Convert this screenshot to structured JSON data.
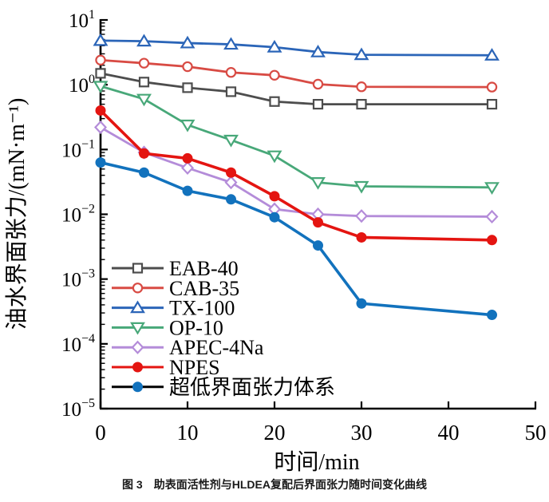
{
  "caption": {
    "number": "图 3",
    "text": "助表面活性剂与HLDEA复配后界面张力随时间变化曲线"
  },
  "chart_data": {
    "type": "line",
    "title": "",
    "xlabel": "时间/min",
    "ylabel": "油水界面张力/(mN·m⁻¹)",
    "grid": false,
    "legend_position": "inside-left-bottom",
    "x_axis": {
      "min": 0,
      "max": 50,
      "ticks": [
        0,
        10,
        20,
        30,
        40,
        50
      ]
    },
    "y_axis": {
      "scale": "log",
      "min_exponent": -5,
      "max_exponent": 1,
      "tick_exponents": [
        1,
        0,
        -1,
        -2,
        -3,
        -4,
        -5
      ],
      "tick_base": "10"
    },
    "x": [
      0,
      5,
      10,
      15,
      20,
      25,
      30,
      45
    ],
    "series": [
      {
        "name": "EAB-40",
        "color": "#4d4d4d",
        "marker": "square-open",
        "values": [
          1.5,
          1.1,
          0.9,
          0.78,
          0.55,
          0.5,
          0.5,
          0.5
        ]
      },
      {
        "name": "CAB-35",
        "color": "#d84b44",
        "marker": "circle-open",
        "values": [
          2.4,
          2.15,
          1.9,
          1.55,
          1.4,
          1.02,
          0.93,
          0.92
        ]
      },
      {
        "name": "TX-100",
        "color": "#2b65b8",
        "marker": "triangle-up-open",
        "values": [
          4.8,
          4.7,
          4.4,
          4.2,
          3.8,
          3.2,
          2.9,
          2.85
        ]
      },
      {
        "name": "OP-10",
        "color": "#48a879",
        "marker": "triangle-down-open",
        "values": [
          0.95,
          0.6,
          0.24,
          0.14,
          0.08,
          0.031,
          0.027,
          0.026
        ]
      },
      {
        "name": "APEC-4Na",
        "color": "#b48cd9",
        "marker": "diamond-open",
        "values": [
          0.22,
          0.09,
          0.052,
          0.031,
          0.012,
          0.01,
          0.0094,
          0.0092
        ]
      },
      {
        "name": "NPES",
        "color": "#e41511",
        "marker": "circle-filled",
        "values": [
          0.4,
          0.087,
          0.073,
          0.044,
          0.019,
          0.0075,
          0.0044,
          0.004
        ]
      },
      {
        "name": "超低界面张力体系",
        "color": "#1272bd",
        "marker": "circle-filled",
        "legend_line_color": "#000000",
        "values": [
          0.063,
          0.044,
          0.023,
          0.017,
          0.009,
          0.0033,
          0.00042,
          0.00028
        ]
      }
    ]
  }
}
